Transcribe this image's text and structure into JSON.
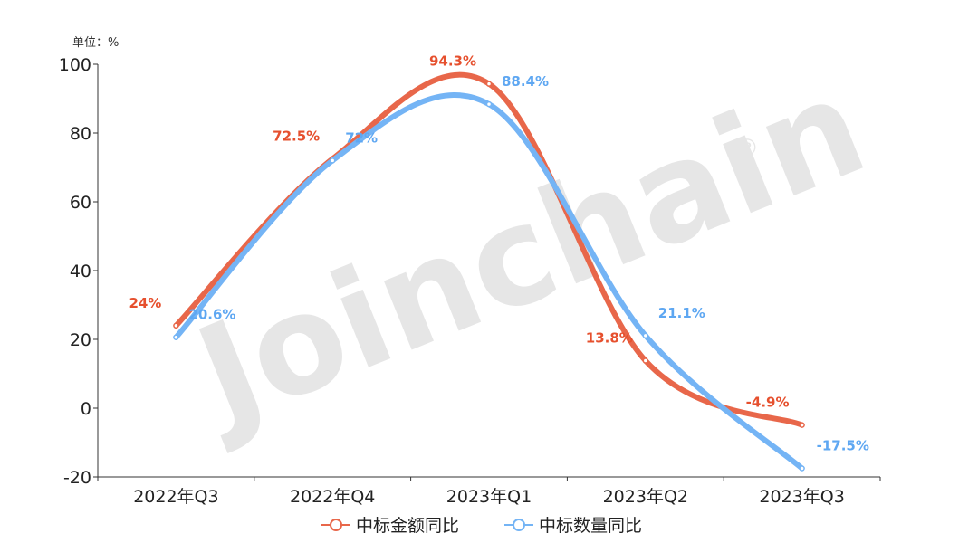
{
  "chart_data": {
    "type": "line",
    "unit_label": "单位：%",
    "categories": [
      "2022年Q3",
      "2022年Q4",
      "2023年Q1",
      "2023年Q2",
      "2023年Q3"
    ],
    "ylim": [
      -20,
      100
    ],
    "yticks": [
      -20,
      0,
      20,
      40,
      60,
      80,
      100
    ],
    "grid": false,
    "smooth": true,
    "legend_position": "bottom-center",
    "series": [
      {
        "name": "中标金额同比",
        "color": "#e8674a",
        "label_color": "#e6502e",
        "values": [
          24,
          72.5,
          94.3,
          13.8,
          -4.9
        ],
        "labels": [
          "24%",
          "72.5%",
          "94.3%",
          "13.8%",
          "-4.9%"
        ]
      },
      {
        "name": "中标数量同比",
        "color": "#74b4f5",
        "label_color": "#5ea7f2",
        "values": [
          20.6,
          72,
          88.4,
          21.1,
          -17.5
        ],
        "labels": [
          "20.6%",
          "72%",
          "88.4%",
          "21.1%",
          "-17.5%"
        ]
      }
    ]
  },
  "watermark": {
    "text": "Joinchain",
    "mark": "®"
  }
}
